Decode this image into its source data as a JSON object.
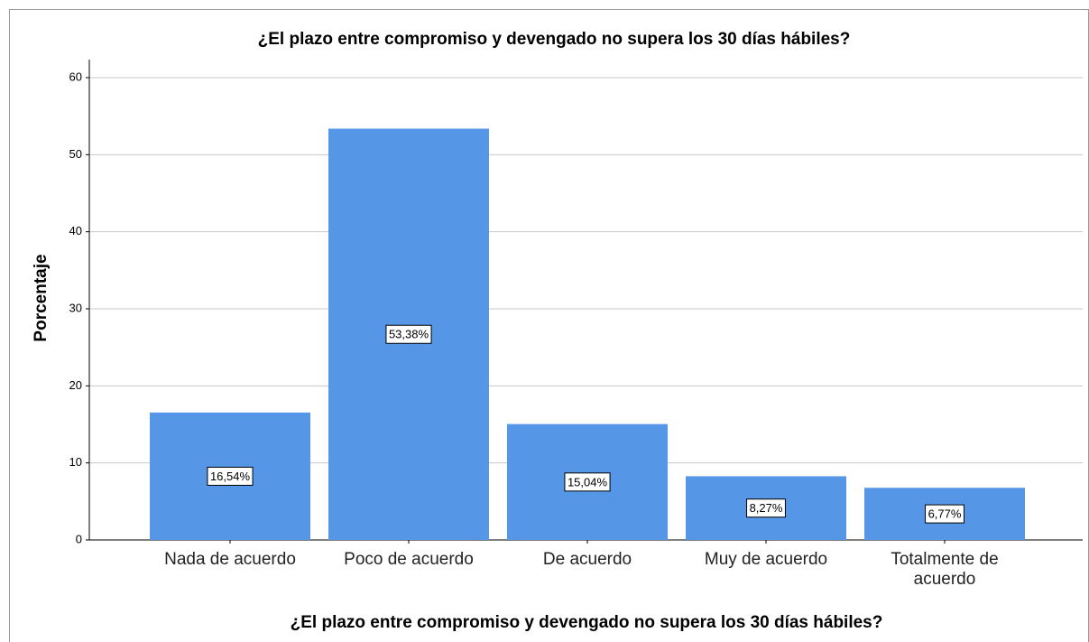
{
  "chart_data": {
    "type": "bar",
    "title": "¿El plazo entre compromiso y devengado no supera los 30 días hábiles?",
    "x_label": "¿El plazo entre compromiso y devengado no supera los 30 días hábiles?",
    "y_label": "Porcentaje",
    "categories": [
      "Nada de acuerdo",
      "Poco de acuerdo",
      "De acuerdo",
      "Muy de acuerdo",
      "Totalmente de acuerdo"
    ],
    "values": [
      16.54,
      53.38,
      15.04,
      8.27,
      6.77
    ],
    "value_labels": [
      "16,54%",
      "53,38%",
      "15,04%",
      "8,27%",
      "6,77%"
    ],
    "color": "#5596e6",
    "ylim": [
      0,
      60
    ],
    "yticks": [
      0,
      10,
      20,
      30,
      40,
      50,
      60
    ],
    "grid": true
  }
}
